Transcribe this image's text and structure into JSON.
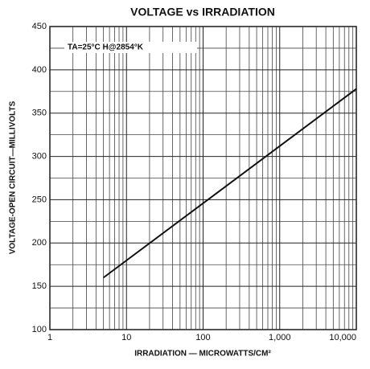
{
  "chart_data": {
    "type": "line",
    "title": "VOLTAGE vs IRRADIATION",
    "xlabel": "IRRADIATION — MICROWATTS/CM²",
    "ylabel": "VOLTAGE-OPEN CIRCUIT—MILLIVOLTS",
    "annotation": "TA=25°C   H@2854°K",
    "x": [
      5,
      10000
    ],
    "series": [
      {
        "name": null,
        "color": "#111111",
        "values": [
          160,
          378
        ]
      }
    ],
    "xlim": [
      1,
      10000
    ],
    "xscale": "log",
    "xticks": [
      1,
      10,
      100,
      {
        "value": 1000,
        "label": "1,000"
      },
      {
        "value": 10000,
        "label": "10,000"
      }
    ],
    "ylim": [
      100,
      450
    ],
    "yticks": [
      100,
      150,
      200,
      250,
      300,
      350,
      400,
      450
    ],
    "grid": true
  }
}
